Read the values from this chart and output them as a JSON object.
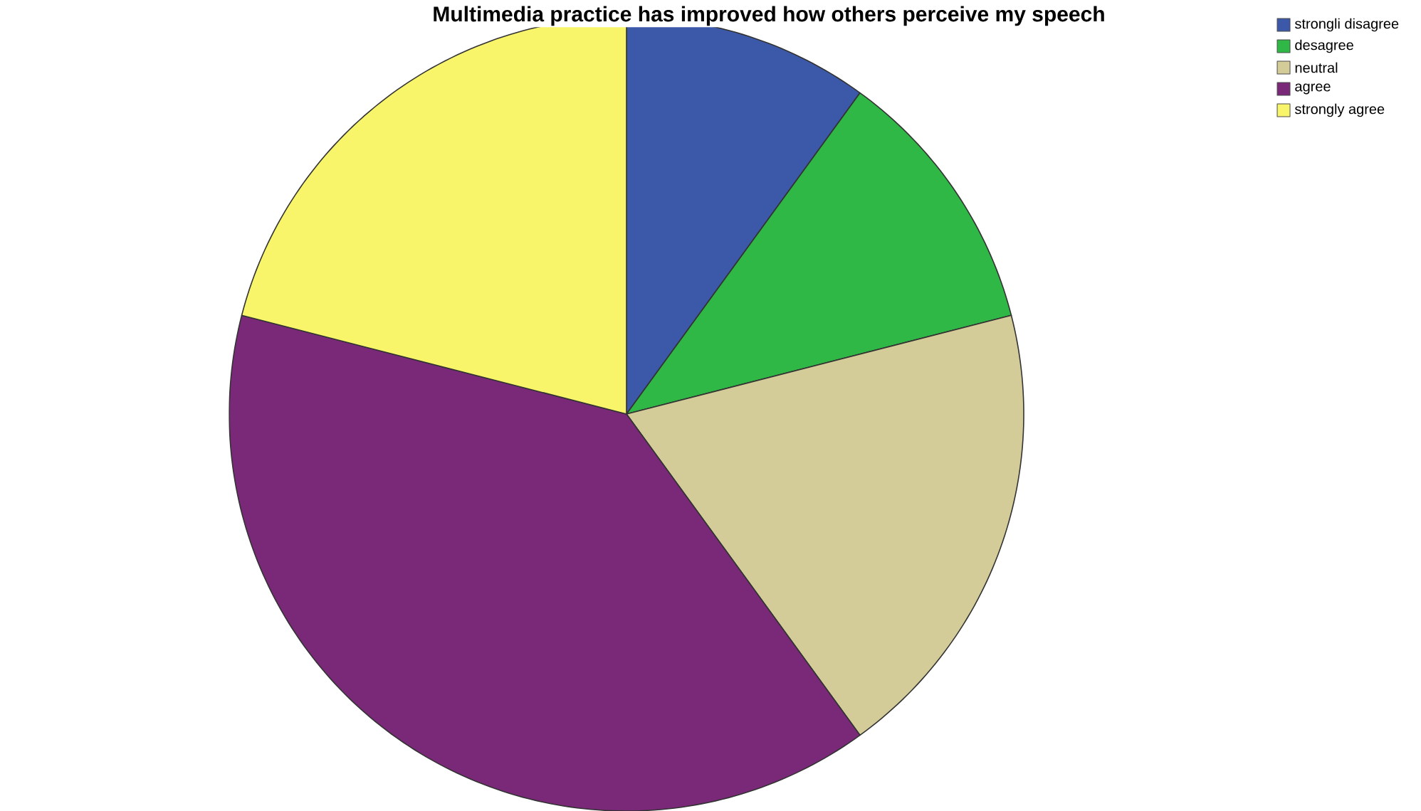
{
  "chart_data": {
    "type": "pie",
    "title": "Multimedia practice has improved how others perceive my speech",
    "categories": [
      "strongli disagree",
      "desagree",
      "neutral",
      "agree",
      "strongly agree"
    ],
    "values": [
      10,
      11,
      19,
      39,
      21
    ],
    "colors": [
      "#3b59a8",
      "#2fb845",
      "#d4cc98",
      "#7a2878",
      "#f8f56a"
    ],
    "legend": "top right"
  }
}
